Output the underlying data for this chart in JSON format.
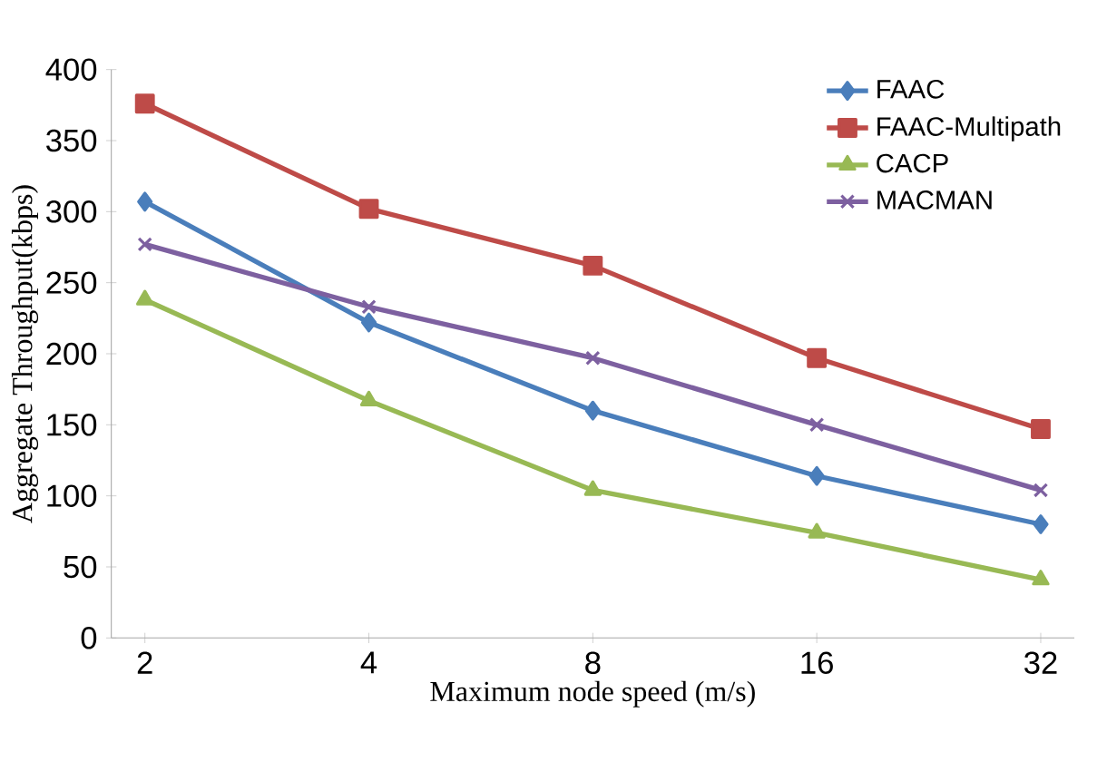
{
  "chart_data": {
    "type": "line",
    "xlabel": "Maximum node speed (m/s)",
    "ylabel": "Aggregate Throughput(kbps)",
    "categories": [
      "2",
      "4",
      "8",
      "16",
      "32"
    ],
    "series": [
      {
        "name": "FAAC",
        "color": "#4a7ebb",
        "marker": "diamond",
        "values": [
          307,
          222,
          160,
          114,
          80
        ]
      },
      {
        "name": "FAAC-Multipath",
        "color": "#be4b48",
        "marker": "square",
        "values": [
          376,
          302,
          262,
          197,
          147
        ]
      },
      {
        "name": "CACP",
        "color": "#98b954",
        "marker": "triangle",
        "values": [
          238,
          167,
          104,
          74,
          41
        ]
      },
      {
        "name": "MACMAN",
        "color": "#7d60a0",
        "marker": "cross",
        "values": [
          277,
          233,
          197,
          150,
          104
        ]
      }
    ],
    "ylim": [
      0,
      400
    ],
    "yticks": [
      0,
      50,
      100,
      150,
      200,
      250,
      300,
      350,
      400
    ],
    "legend": "top right",
    "grid": false
  }
}
